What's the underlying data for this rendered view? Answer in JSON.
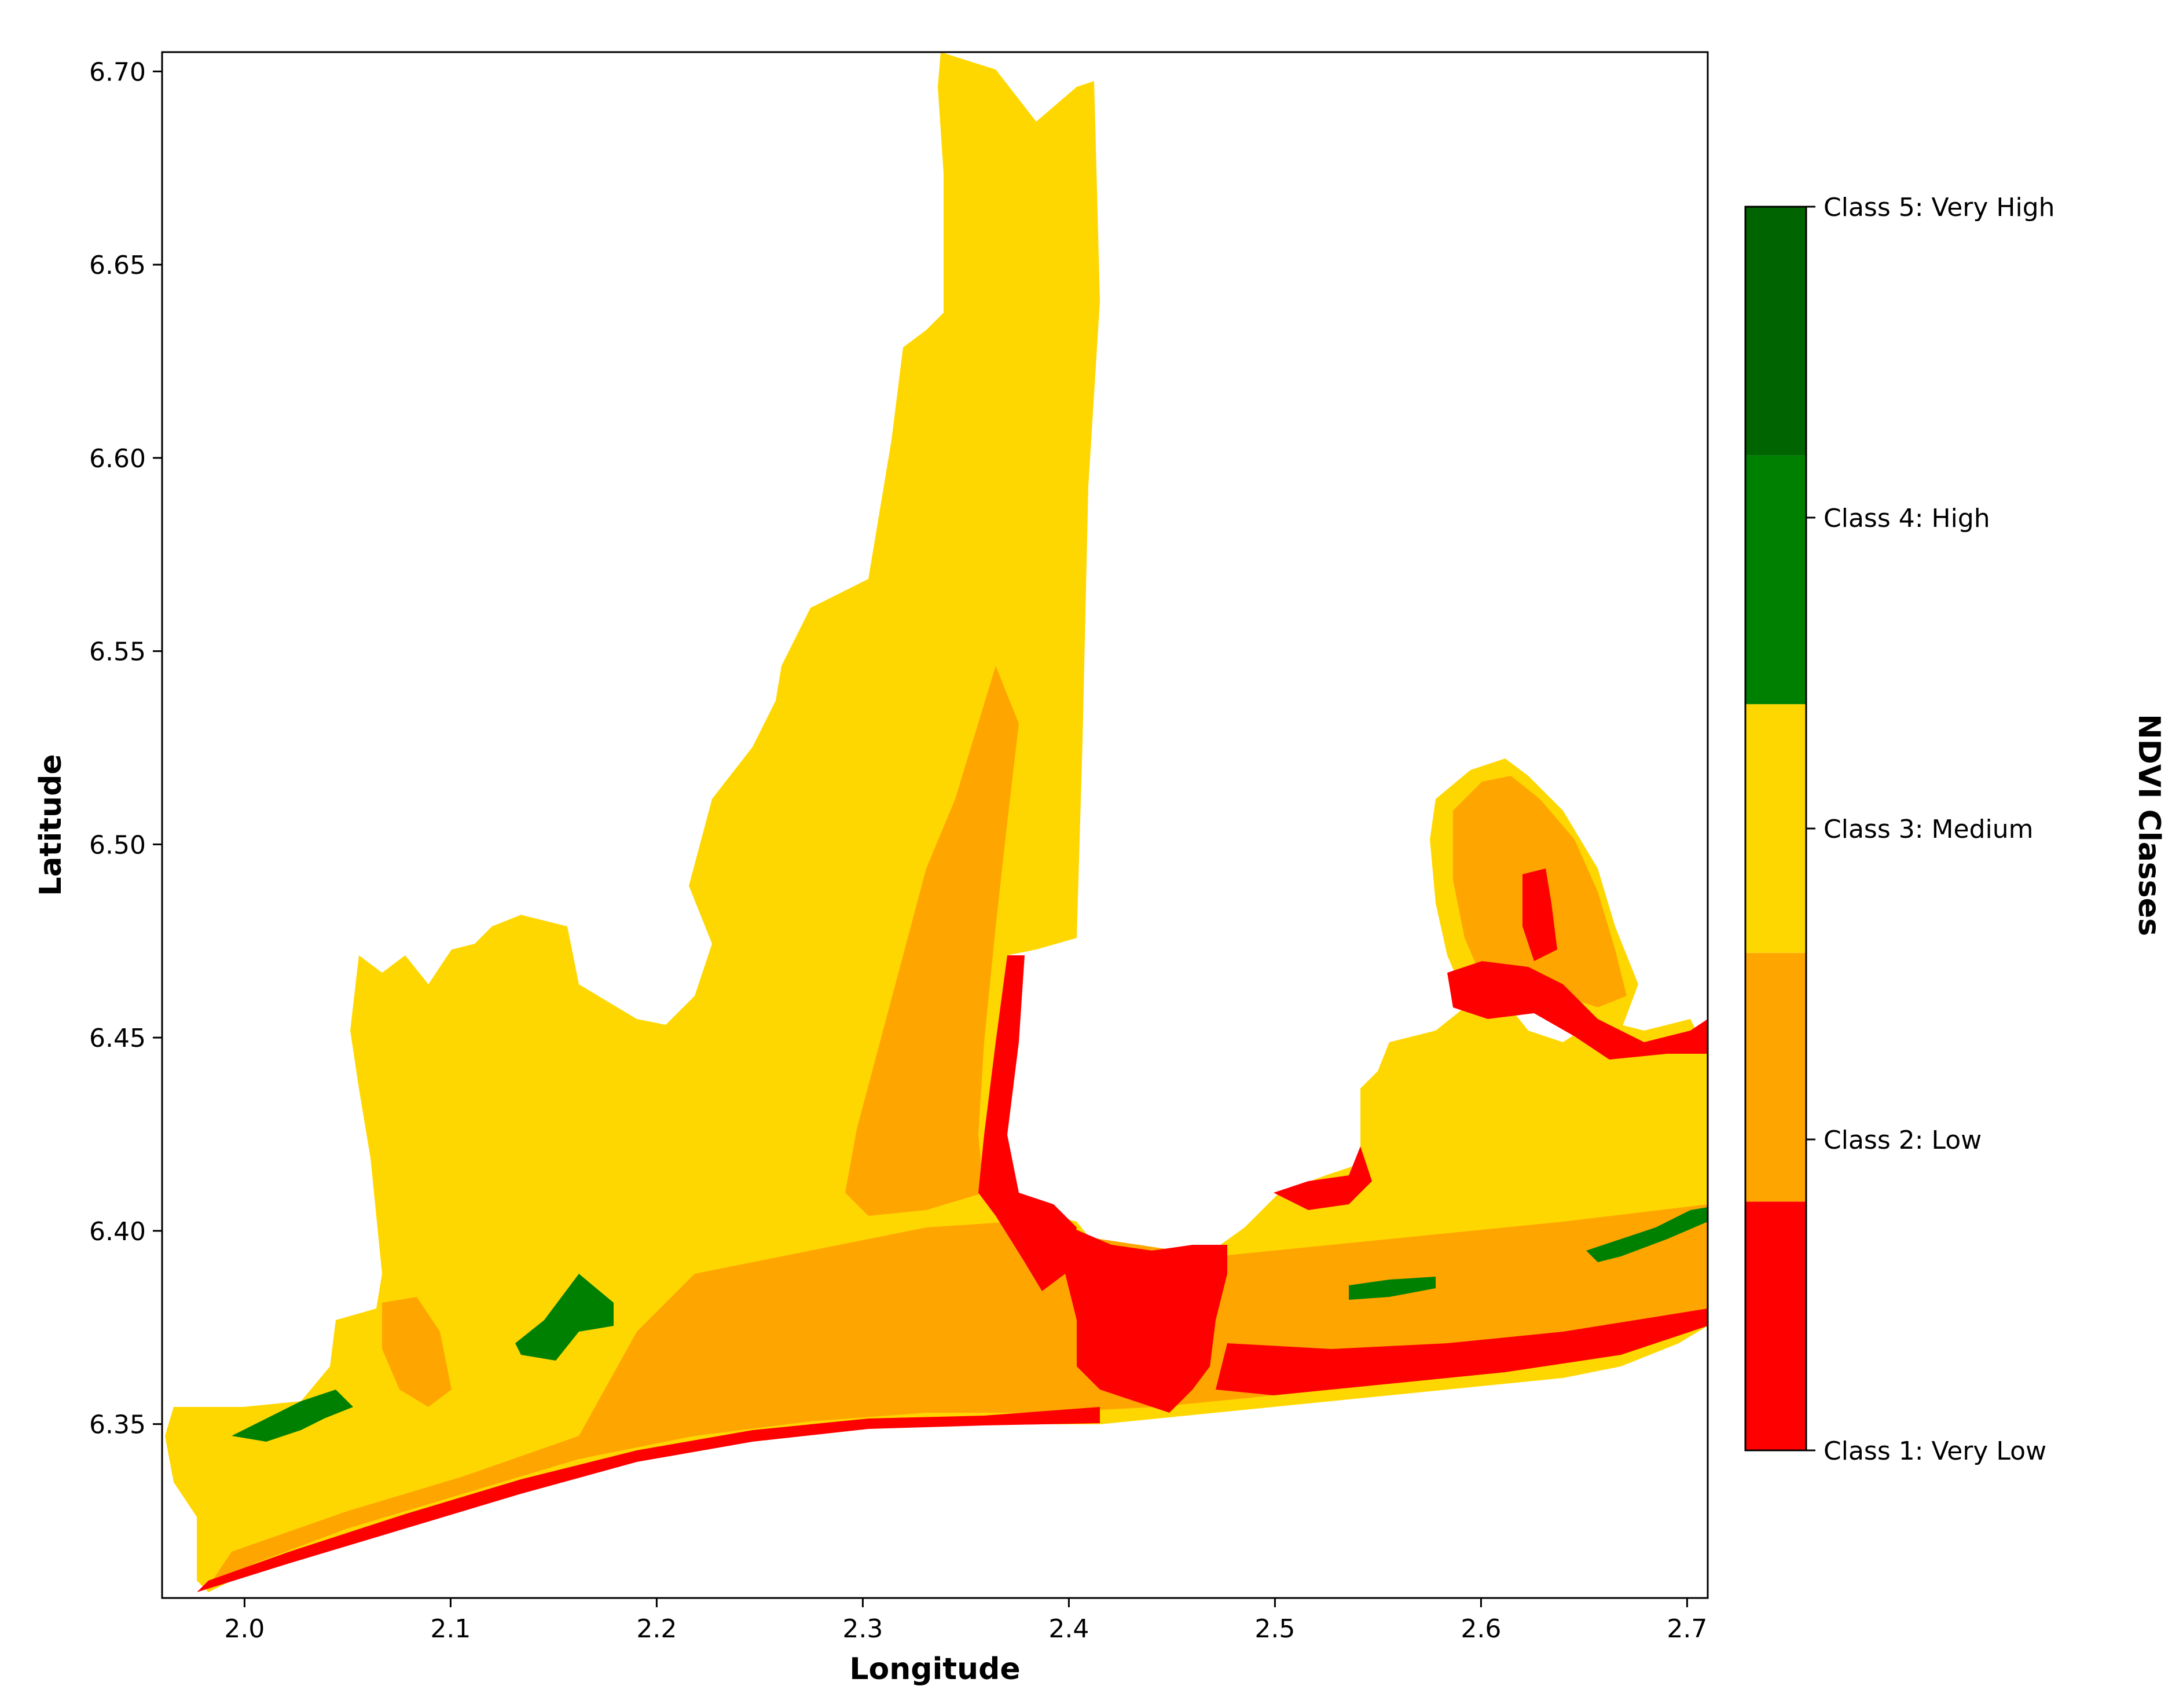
{
  "map": {
    "xlabel": "Longitude",
    "ylabel": "Latitude",
    "x_ticks": [
      "2.0",
      "2.1",
      "2.2",
      "2.3",
      "2.4",
      "2.5",
      "2.6",
      "2.7"
    ],
    "y_ticks": [
      "6.35",
      "6.40",
      "6.45",
      "6.50",
      "6.55",
      "6.60",
      "6.65",
      "6.70"
    ],
    "xlim": [
      1.96,
      2.71
    ],
    "ylim": [
      6.305,
      6.705
    ],
    "colorbar": {
      "title": "NDVI Classes",
      "classes": [
        {
          "label": "Class 1: Very Low",
          "color": "#ff0000"
        },
        {
          "label": "Class 2: Low",
          "color": "#ffa500"
        },
        {
          "label": "Class 3: Medium",
          "color": "#ffd700"
        },
        {
          "label": "Class 4: High",
          "color": "#008000"
        },
        {
          "label": "Class 5: Very High",
          "color": "#006400"
        }
      ]
    }
  }
}
